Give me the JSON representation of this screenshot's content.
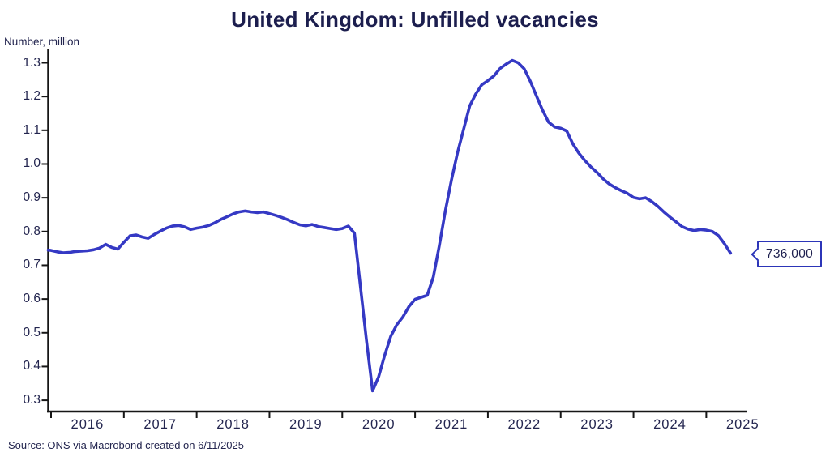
{
  "colors": {
    "line": "#3539c4",
    "axis": "#161616",
    "text_navy": "#23254f",
    "callout_border": "#2c35b8"
  },
  "footer": {
    "source": "Source: ONS via Macrobond created on 6/11/2025"
  },
  "callout": {
    "label": "736,000"
  },
  "chart_data": {
    "type": "line",
    "title": "United Kingdom: Unfilled vacancies",
    "ylabel": "Number, million",
    "xlabel": "",
    "ylim": [
      0.3,
      1.3
    ],
    "grid": false,
    "legend": "none",
    "y_ticks": [
      "1.3",
      "1.2",
      "1.1",
      "1.0",
      "0.9",
      "0.8",
      "0.7",
      "0.6",
      "0.5",
      "0.4",
      "0.3"
    ],
    "x_tick_years": [
      "2016",
      "2017",
      "2018",
      "2019",
      "2020",
      "2021",
      "2022",
      "2023",
      "2024",
      "2025"
    ],
    "last_value_label": "736,000",
    "series": [
      {
        "name": "Unfilled vacancies, million",
        "frequency": "monthly",
        "start_period": "2015-12",
        "end_period": "2025-05",
        "values": [
          0.745,
          0.744,
          0.74,
          0.737,
          0.738,
          0.741,
          0.742,
          0.743,
          0.746,
          0.751,
          0.762,
          0.753,
          0.748,
          0.768,
          0.787,
          0.79,
          0.784,
          0.78,
          0.791,
          0.801,
          0.81,
          0.816,
          0.818,
          0.814,
          0.806,
          0.81,
          0.813,
          0.818,
          0.826,
          0.836,
          0.844,
          0.852,
          0.858,
          0.861,
          0.858,
          0.856,
          0.858,
          0.853,
          0.848,
          0.842,
          0.835,
          0.827,
          0.82,
          0.817,
          0.821,
          0.815,
          0.812,
          0.809,
          0.806,
          0.809,
          0.816,
          0.795,
          0.637,
          0.476,
          0.328,
          0.37,
          0.434,
          0.49,
          0.524,
          0.547,
          0.578,
          0.599,
          0.605,
          0.611,
          0.665,
          0.758,
          0.862,
          0.953,
          1.034,
          1.103,
          1.172,
          1.207,
          1.235,
          1.247,
          1.261,
          1.283,
          1.296,
          1.307,
          1.3,
          1.282,
          1.245,
          1.202,
          1.16,
          1.124,
          1.11,
          1.106,
          1.098,
          1.06,
          1.032,
          1.01,
          0.991,
          0.975,
          0.956,
          0.941,
          0.93,
          0.921,
          0.913,
          0.901,
          0.897,
          0.9,
          0.889,
          0.875,
          0.858,
          0.843,
          0.829,
          0.815,
          0.807,
          0.803,
          0.806,
          0.804,
          0.8,
          0.788,
          0.764,
          0.736
        ]
      }
    ]
  }
}
